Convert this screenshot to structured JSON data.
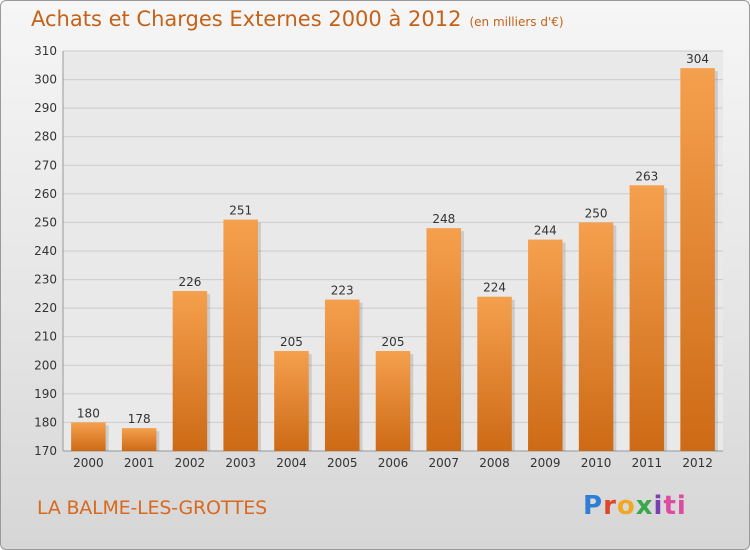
{
  "chart_data": {
    "type": "bar",
    "title": "Achats et Charges Externes 2000 à 2012",
    "subtitle": "(en milliers d'€)",
    "categories": [
      "2000",
      "2001",
      "2002",
      "2003",
      "2004",
      "2005",
      "2006",
      "2007",
      "2008",
      "2009",
      "2010",
      "2011",
      "2012"
    ],
    "values": [
      180,
      178,
      226,
      251,
      205,
      223,
      205,
      248,
      224,
      244,
      250,
      263,
      304
    ],
    "ylim": [
      170,
      310
    ],
    "yticks": [
      170,
      180,
      190,
      200,
      210,
      220,
      230,
      240,
      250,
      260,
      270,
      280,
      290,
      300,
      310
    ],
    "grid": true,
    "colors": {
      "bar_top": "#f5a04e",
      "bar_bottom": "#cd6a16",
      "title": "#c46218",
      "grid": "#cccccc"
    }
  },
  "commune": "LA BALME-LES-GROTTES",
  "logo": {
    "letters": [
      "P",
      "r",
      "o",
      "x",
      "i",
      "ti"
    ],
    "text": "Proxiti"
  }
}
